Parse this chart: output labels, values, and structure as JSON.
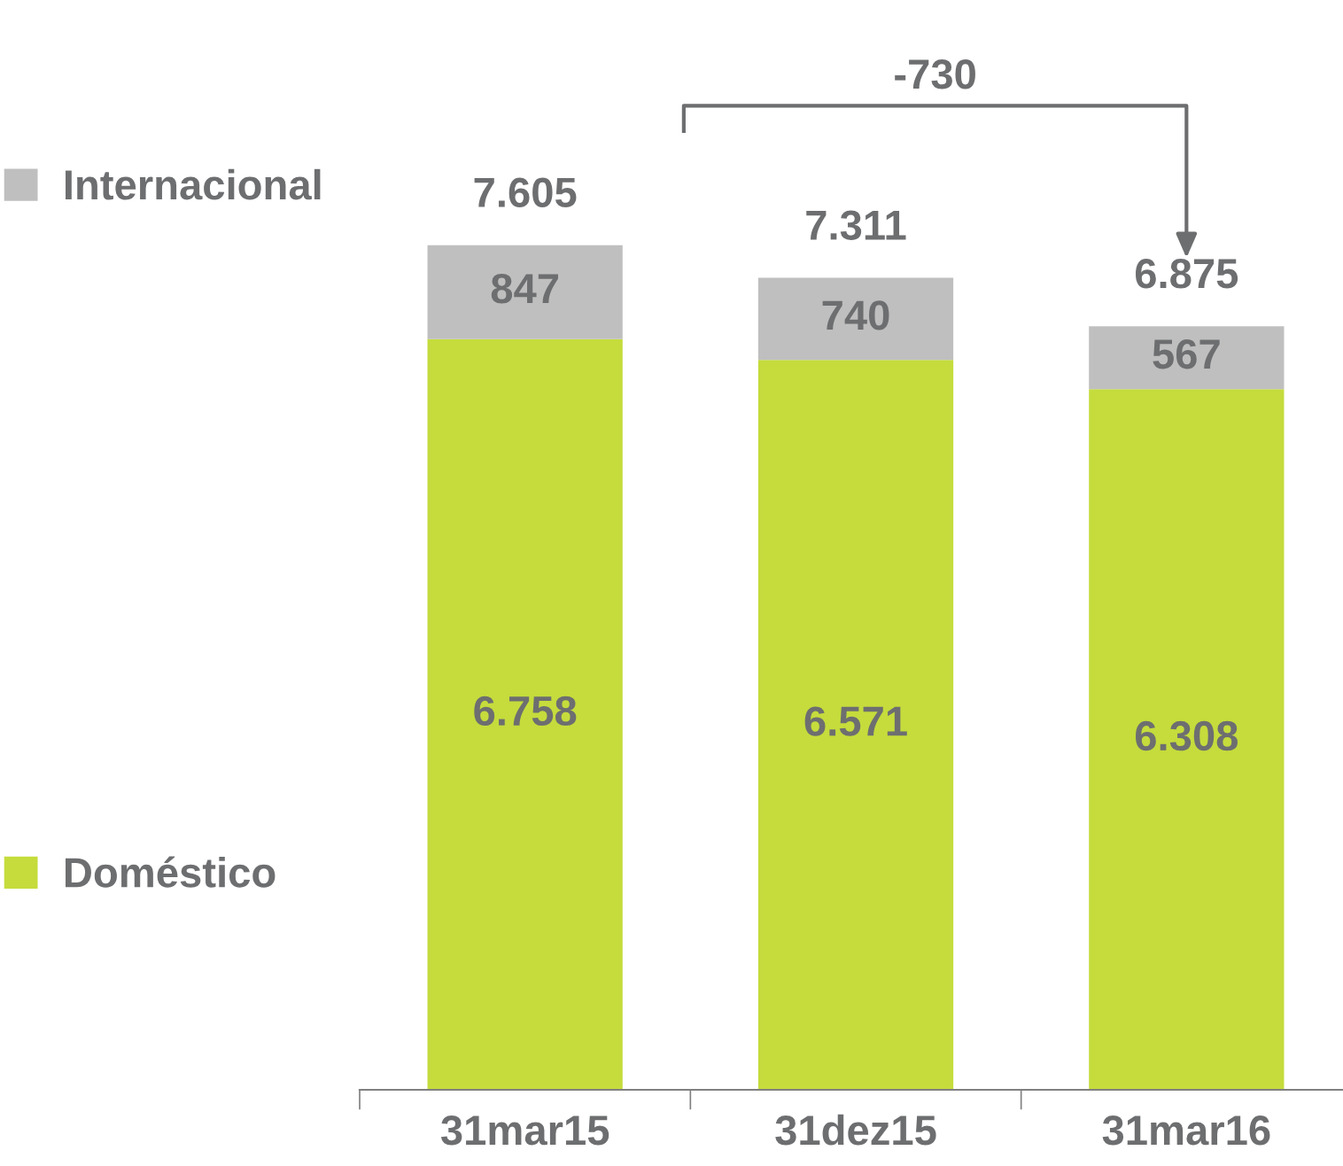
{
  "chart_data": {
    "type": "bar",
    "stacked": true,
    "categories": [
      "31mar15",
      "31dez15",
      "31mar16"
    ],
    "series": [
      {
        "name": "Doméstico",
        "color": "#c5dc3c",
        "values": [
          6758,
          6571,
          6308
        ],
        "value_labels": [
          "6.758",
          "6.571",
          "6.308"
        ]
      },
      {
        "name": "Internacional",
        "color": "#bfbfbf",
        "values": [
          847,
          740,
          567
        ],
        "value_labels": [
          "847",
          "740",
          "567"
        ]
      }
    ],
    "totals": [
      "7.605",
      "7.311",
      "6.875"
    ],
    "annotations": [
      "-730"
    ],
    "legend": "left",
    "grid": false
  }
}
